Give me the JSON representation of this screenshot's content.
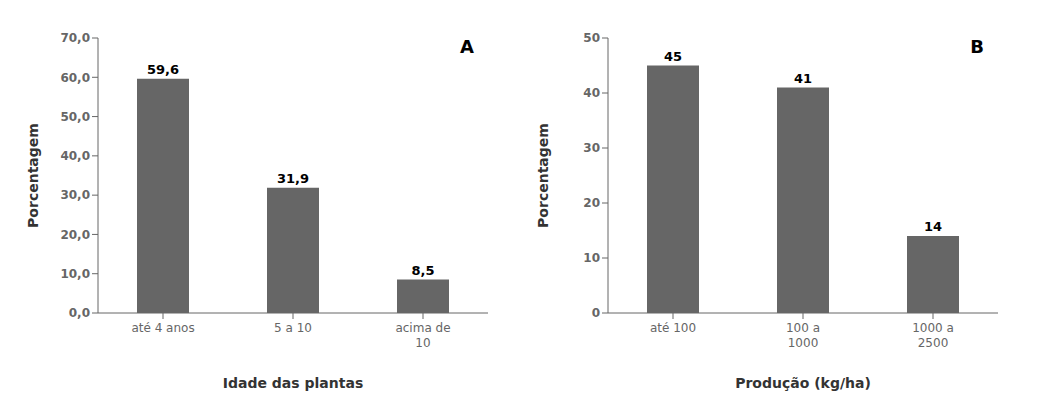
{
  "chart_data": [
    {
      "type": "bar",
      "annotations": [
        "A"
      ],
      "xlabel": "Idade das plantas",
      "ylabel": "Porcentagem",
      "categories": [
        "até 4 anos",
        "5 a 10",
        "acima de\n10"
      ],
      "values": [
        59.6,
        31.9,
        8.5
      ],
      "value_labels": [
        "59,6",
        "31,9",
        "8,5"
      ],
      "data_labels": true,
      "color": "#666666",
      "ylim": [
        0,
        70
      ],
      "yticks": [
        {
          "value": 0,
          "label": "0,0"
        },
        {
          "value": 10,
          "label": "10,0"
        },
        {
          "value": 20,
          "label": "20,0"
        },
        {
          "value": 30,
          "label": "30,0"
        },
        {
          "value": 40,
          "label": "40,0"
        },
        {
          "value": 50,
          "label": "50,0"
        },
        {
          "value": 60,
          "label": "60,0"
        },
        {
          "value": 70,
          "label": "70,0"
        }
      ]
    },
    {
      "type": "bar",
      "annotations": [
        "B"
      ],
      "xlabel": "Produção (kg/ha)",
      "ylabel": "Porcentagem",
      "categories": [
        "até 100",
        "100 a\n1000",
        "1000 a\n2500"
      ],
      "values": [
        45,
        41,
        14
      ],
      "data_labels": true,
      "color": "#666666",
      "ylim": [
        0,
        50
      ],
      "yticks": [
        0,
        10,
        20,
        30,
        40,
        50
      ]
    }
  ]
}
